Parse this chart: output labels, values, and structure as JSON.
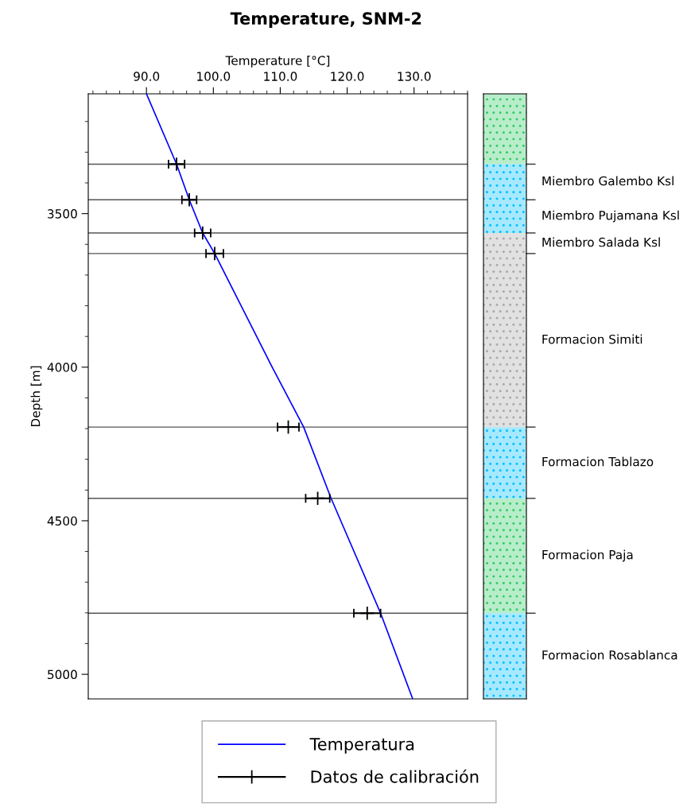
{
  "chart_data": {
    "type": "line",
    "title": "Temperature, SNM-2",
    "xlabel": "Temperature [°C]",
    "ylabel": "Depth [m]",
    "xlim": [
      81.3,
      138
    ],
    "xticks": [
      {
        "value": 90,
        "label": "90.0"
      },
      {
        "value": 100,
        "label": "100.0"
      },
      {
        "value": 110,
        "label": "110.0"
      },
      {
        "value": 120,
        "label": "120.0"
      },
      {
        "value": 130,
        "label": "130.0"
      }
    ],
    "ylim": [
      5080,
      3110
    ],
    "yticks": [
      3500,
      4000,
      4500,
      5000
    ],
    "legend": "bottom",
    "series": [
      {
        "name": "Temperatura",
        "color": "#0000ff",
        "line_style": "solid",
        "x": [
          90,
          94.5,
          96.4,
          98.4,
          100.2,
          108.8,
          113.5,
          117.6,
          125.0,
          129.8
        ],
        "values": [
          3110,
          3339,
          3455,
          3563,
          3630,
          4000,
          4195,
          4427,
          4801,
          5080
        ]
      },
      {
        "name": "Datos de calibración",
        "type": "scatter",
        "color": "#000000",
        "marker": "cross",
        "x": [
          94.5,
          96.4,
          98.4,
          100.2,
          111.2,
          115.6,
          123.0
        ],
        "values": [
          3339,
          3455,
          3563,
          3630,
          4195,
          4427,
          4801
        ],
        "xerrors": [
          1.2,
          1.1,
          1.2,
          1.3,
          1.6,
          1.8,
          2.0
        ]
      }
    ],
    "ref_lines": [
      {
        "axis": "y",
        "value": 3339,
        "color": "#555555"
      },
      {
        "axis": "y",
        "value": 3455,
        "color": "#555555"
      },
      {
        "axis": "y",
        "value": 3563,
        "color": "#555555"
      },
      {
        "axis": "y",
        "value": 3630,
        "color": "#555555"
      },
      {
        "axis": "y",
        "value": 4195,
        "color": "#555555"
      },
      {
        "axis": "y",
        "value": 4427,
        "color": "#555555"
      },
      {
        "axis": "y",
        "value": 4801,
        "color": "#555555"
      }
    ],
    "annotations": [
      "Miembro Galembo Ksl",
      "Miembro Pujamana Ksl",
      "Miembro Salada Ksl",
      "Formacion Simiti",
      "Formacion Tablazo",
      "Formacion Paja",
      "Formacion Rosablanca"
    ]
  }
}
